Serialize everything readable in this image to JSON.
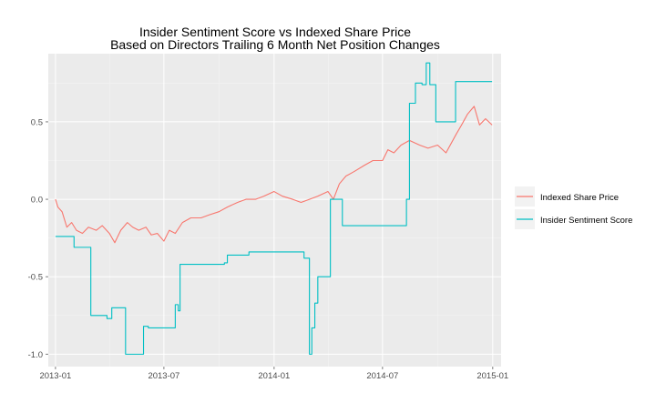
{
  "chart_data": {
    "type": "line",
    "title": "Insider Sentiment Score vs Indexed Share Price",
    "subtitle": "Based on Directors Trailing 6 Month Net Position Changes",
    "xlabel": "",
    "ylabel": "",
    "x_range": [
      "2012-12-20",
      "2015-01-15"
    ],
    "ylim": [
      -1.08,
      0.94
    ],
    "x_ticks": [
      {
        "date": "2013-01-01",
        "label": "2013-01"
      },
      {
        "date": "2013-07-01",
        "label": "2013-07"
      },
      {
        "date": "2014-01-01",
        "label": "2014-01"
      },
      {
        "date": "2014-07-01",
        "label": "2014-07"
      },
      {
        "date": "2015-01-01",
        "label": "2015-01"
      }
    ],
    "y_ticks": [
      {
        "value": 0.5,
        "label": "0.5"
      },
      {
        "value": 0.0,
        "label": "0.0"
      },
      {
        "value": -0.5,
        "label": "-0.5"
      },
      {
        "value": -1.0,
        "label": "-1.0"
      }
    ],
    "grid": true,
    "legend_position": "right",
    "series": [
      {
        "name": "Indexed Share Price",
        "color": "#F8766D",
        "step": false,
        "x": [
          "2013-01-01",
          "2013-01-05",
          "2013-01-12",
          "2013-01-20",
          "2013-01-28",
          "2013-02-05",
          "2013-02-15",
          "2013-02-25",
          "2013-03-10",
          "2013-03-20",
          "2013-04-01",
          "2013-04-10",
          "2013-04-20",
          "2013-05-01",
          "2013-05-10",
          "2013-05-20",
          "2013-06-01",
          "2013-06-10",
          "2013-06-20",
          "2013-07-01",
          "2013-07-10",
          "2013-07-20",
          "2013-08-01",
          "2013-08-15",
          "2013-09-01",
          "2013-09-15",
          "2013-10-01",
          "2013-10-15",
          "2013-11-01",
          "2013-11-15",
          "2013-12-01",
          "2013-12-15",
          "2014-01-01",
          "2014-01-15",
          "2014-02-01",
          "2014-02-15",
          "2014-03-01",
          "2014-03-15",
          "2014-04-01",
          "2014-04-10",
          "2014-04-20",
          "2014-05-01",
          "2014-05-15",
          "2014-06-01",
          "2014-06-15",
          "2014-07-01",
          "2014-07-10",
          "2014-07-20",
          "2014-08-01",
          "2014-08-15",
          "2014-09-01",
          "2014-09-15",
          "2014-10-01",
          "2014-10-15",
          "2014-11-01",
          "2014-11-10",
          "2014-11-20",
          "2014-12-01",
          "2014-12-10",
          "2014-12-20",
          "2014-12-31"
        ],
        "values": [
          0.0,
          -0.05,
          -0.08,
          -0.18,
          -0.15,
          -0.2,
          -0.22,
          -0.18,
          -0.2,
          -0.17,
          -0.22,
          -0.28,
          -0.2,
          -0.15,
          -0.18,
          -0.2,
          -0.18,
          -0.23,
          -0.22,
          -0.27,
          -0.2,
          -0.22,
          -0.15,
          -0.12,
          -0.12,
          -0.1,
          -0.08,
          -0.05,
          -0.02,
          0.0,
          0.0,
          0.02,
          0.05,
          0.02,
          0.0,
          -0.02,
          0.0,
          0.02,
          0.05,
          0.0,
          0.1,
          0.15,
          0.18,
          0.22,
          0.25,
          0.25,
          0.32,
          0.3,
          0.35,
          0.38,
          0.35,
          0.33,
          0.35,
          0.3,
          0.42,
          0.48,
          0.55,
          0.6,
          0.48,
          0.52,
          0.48
        ]
      },
      {
        "name": "Insider Sentiment Score",
        "color": "#00BFC4",
        "step": true,
        "x": [
          "2013-01-01",
          "2013-02-01",
          "2013-03-01",
          "2013-03-28",
          "2013-04-05",
          "2013-04-28",
          "2013-05-28",
          "2013-06-05",
          "2013-07-20",
          "2013-07-25",
          "2013-07-28",
          "2013-10-10",
          "2013-10-15",
          "2013-11-20",
          "2014-02-20",
          "2014-03-01",
          "2014-03-05",
          "2014-03-10",
          "2014-03-15",
          "2014-03-20",
          "2014-04-05",
          "2014-04-25",
          "2014-08-10",
          "2014-08-15",
          "2014-08-25",
          "2014-09-05",
          "2014-09-12",
          "2014-09-18",
          "2014-09-28",
          "2014-10-28",
          "2014-10-31",
          "2014-12-31"
        ],
        "values": [
          -0.24,
          -0.31,
          -0.75,
          -0.77,
          -0.7,
          -1.0,
          -0.82,
          -0.83,
          -0.68,
          -0.72,
          -0.42,
          -0.41,
          -0.36,
          -0.34,
          -0.38,
          -1.0,
          -0.83,
          -0.67,
          -0.5,
          -0.5,
          0.0,
          -0.17,
          0.0,
          0.62,
          0.75,
          0.74,
          0.88,
          0.74,
          0.5,
          0.5,
          0.76,
          0.76
        ]
      }
    ]
  }
}
